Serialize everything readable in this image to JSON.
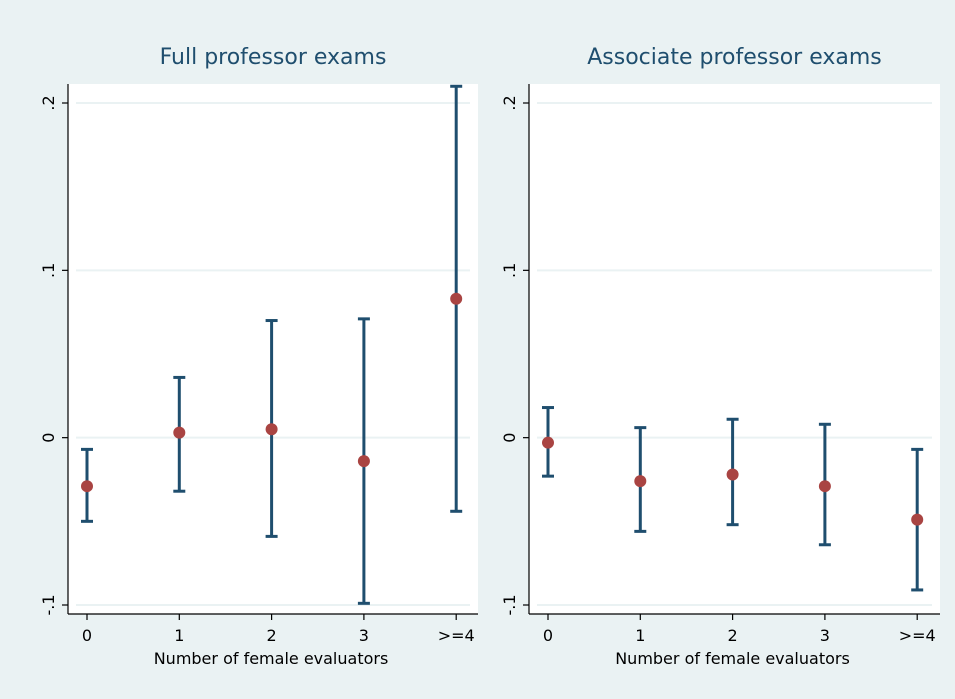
{
  "colors": {
    "outer_background": "#eaf2f3",
    "plot_background": "#ffffff",
    "gridline": "#eaf2f3",
    "title_text": "#1f4e6e",
    "error_bar": "#1f4e6e",
    "point": "#a94442"
  },
  "chart_data": [
    {
      "type": "scatter",
      "title": "Full professor exams",
      "xlabel": "Number of female evaluators",
      "ylabel": "",
      "categories": [
        "0",
        "1",
        "2",
        "3",
        ">=4"
      ],
      "yticks": [
        -0.1,
        0,
        0.1,
        0.2
      ],
      "ytick_labels": [
        "-.1",
        "0",
        ".1",
        ".2"
      ],
      "ylim": [
        -0.1,
        0.21
      ],
      "grid": true,
      "series": [
        {
          "estimate": [
            -0.029,
            0.003,
            0.005,
            -0.014,
            0.083
          ],
          "ci_low": [
            -0.05,
            -0.032,
            -0.059,
            -0.099,
            -0.044
          ],
          "ci_high": [
            -0.007,
            0.036,
            0.07,
            0.071,
            0.21
          ]
        }
      ]
    },
    {
      "type": "scatter",
      "title": "Associate professor exams",
      "xlabel": "Number of female evaluators",
      "ylabel": "",
      "categories": [
        "0",
        "1",
        "2",
        "3",
        ">=4"
      ],
      "yticks": [
        -0.1,
        0,
        0.1,
        0.2
      ],
      "ytick_labels": [
        "-.1",
        "0",
        ".1",
        ".2"
      ],
      "ylim": [
        -0.1,
        0.21
      ],
      "grid": true,
      "series": [
        {
          "estimate": [
            -0.003,
            -0.026,
            -0.022,
            -0.029,
            -0.049
          ],
          "ci_low": [
            -0.023,
            -0.056,
            -0.052,
            -0.064,
            -0.091
          ],
          "ci_high": [
            0.018,
            0.006,
            0.011,
            0.008,
            -0.007
          ]
        }
      ]
    }
  ]
}
